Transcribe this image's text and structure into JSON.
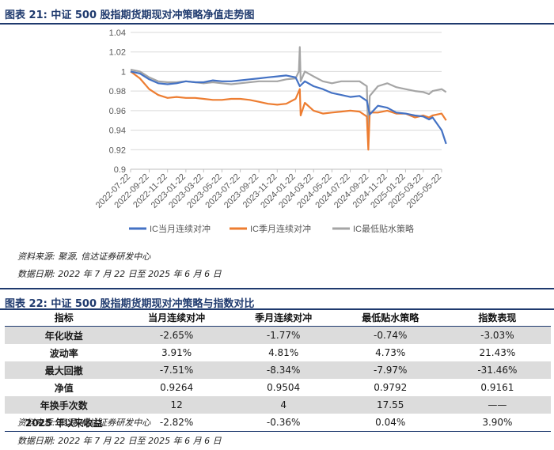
{
  "figure21": {
    "title": "图表 21:  中证 500 股指期货期现对冲策略净值走势图",
    "source": "资料来源:  聚源,  信达证券研发中心",
    "date_range": "数据日期:  2022 年 7 月 22 日至 2025 年 6 月 6 日"
  },
  "chart_data": {
    "type": "line",
    "title": "",
    "xlabel": "",
    "ylabel": "",
    "ylim": [
      0.9,
      1.04
    ],
    "yticks": [
      "0.9",
      "0.92",
      "0.94",
      "0.96",
      "0.98",
      "1",
      "1.02",
      "1.04"
    ],
    "x_ticks": [
      "2022-07-22",
      "2022-09-22",
      "2022-11-22",
      "2023-01-22",
      "2023-03-22",
      "2023-05-22",
      "2023-07-22",
      "2023-09-22",
      "2023-11-22",
      "2024-01-22",
      "2024-03-22",
      "2024-05-22",
      "2024-07-22",
      "2024-09-22",
      "2024-11-22",
      "2025-01-22",
      "2025-03-22",
      "2025-05-22"
    ],
    "grid": "horizontal",
    "legend_position": "bottom",
    "series": [
      {
        "name": "IC当月连续对冲",
        "color": "#4472c4",
        "x": [
          "2022-07-22",
          "2022-08-22",
          "2022-09-22",
          "2022-10-22",
          "2022-11-22",
          "2022-12-22",
          "2023-01-22",
          "2023-02-22",
          "2023-03-22",
          "2023-04-22",
          "2023-05-22",
          "2023-06-22",
          "2023-07-22",
          "2023-08-22",
          "2023-09-22",
          "2023-10-22",
          "2023-11-22",
          "2023-12-22",
          "2024-01-22",
          "2024-02-05",
          "2024-02-22",
          "2024-03-22",
          "2024-04-22",
          "2024-05-22",
          "2024-06-22",
          "2024-07-22",
          "2024-08-22",
          "2024-09-15",
          "2024-09-25",
          "2024-10-22",
          "2024-11-22",
          "2024-12-22",
          "2025-01-22",
          "2025-02-22",
          "2025-03-22",
          "2025-04-10",
          "2025-04-22",
          "2025-05-22",
          "2025-06-06"
        ],
        "values": [
          1.0,
          0.998,
          0.992,
          0.988,
          0.987,
          0.988,
          0.99,
          0.989,
          0.989,
          0.991,
          0.99,
          0.99,
          0.991,
          0.992,
          0.993,
          0.994,
          0.995,
          0.996,
          0.994,
          0.985,
          0.99,
          0.985,
          0.982,
          0.978,
          0.976,
          0.974,
          0.975,
          0.97,
          0.956,
          0.965,
          0.963,
          0.958,
          0.957,
          0.955,
          0.954,
          0.951,
          0.953,
          0.94,
          0.926
        ]
      },
      {
        "name": "IC季月连续对冲",
        "color": "#ed7d31",
        "x": [
          "2022-07-22",
          "2022-08-22",
          "2022-09-22",
          "2022-10-22",
          "2022-11-22",
          "2022-12-22",
          "2023-01-22",
          "2023-02-22",
          "2023-03-22",
          "2023-04-22",
          "2023-05-22",
          "2023-06-22",
          "2023-07-22",
          "2023-08-22",
          "2023-09-22",
          "2023-10-22",
          "2023-11-22",
          "2023-12-22",
          "2024-01-22",
          "2024-02-05",
          "2024-02-08",
          "2024-02-22",
          "2024-03-22",
          "2024-04-22",
          "2024-05-22",
          "2024-06-22",
          "2024-07-22",
          "2024-08-22",
          "2024-09-15",
          "2024-09-20",
          "2024-09-25",
          "2024-10-22",
          "2024-11-22",
          "2024-12-22",
          "2025-01-22",
          "2025-02-22",
          "2025-03-22",
          "2025-04-10",
          "2025-04-22",
          "2025-05-22",
          "2025-06-06"
        ],
        "values": [
          1.0,
          0.993,
          0.982,
          0.976,
          0.973,
          0.974,
          0.973,
          0.973,
          0.972,
          0.971,
          0.971,
          0.972,
          0.972,
          0.971,
          0.969,
          0.967,
          0.966,
          0.967,
          0.972,
          0.982,
          0.955,
          0.968,
          0.96,
          0.957,
          0.958,
          0.959,
          0.96,
          0.959,
          0.954,
          0.92,
          0.958,
          0.958,
          0.96,
          0.957,
          0.957,
          0.953,
          0.955,
          0.953,
          0.955,
          0.957,
          0.95
        ]
      },
      {
        "name": "IC最低贴水策略",
        "color": "#a5a5a5",
        "x": [
          "2022-07-22",
          "2022-08-22",
          "2022-09-22",
          "2022-10-22",
          "2022-11-22",
          "2022-12-22",
          "2023-01-22",
          "2023-02-22",
          "2023-03-22",
          "2023-04-22",
          "2023-05-22",
          "2023-06-22",
          "2023-07-22",
          "2023-08-22",
          "2023-09-22",
          "2023-10-22",
          "2023-11-22",
          "2023-12-22",
          "2024-01-22",
          "2024-02-02",
          "2024-02-05",
          "2024-02-08",
          "2024-02-22",
          "2024-03-22",
          "2024-04-22",
          "2024-05-22",
          "2024-06-22",
          "2024-07-22",
          "2024-08-22",
          "2024-09-15",
          "2024-09-20",
          "2024-09-25",
          "2024-10-22",
          "2024-11-22",
          "2024-12-22",
          "2025-01-22",
          "2025-02-22",
          "2025-03-22",
          "2025-04-10",
          "2025-04-22",
          "2025-05-22",
          "2025-06-06"
        ],
        "values": [
          1.002,
          1.0,
          0.994,
          0.99,
          0.989,
          0.989,
          0.99,
          0.989,
          0.988,
          0.989,
          0.988,
          0.987,
          0.988,
          0.989,
          0.99,
          0.99,
          0.99,
          0.992,
          0.993,
          1.0,
          1.025,
          0.99,
          1.0,
          0.995,
          0.99,
          0.988,
          0.99,
          0.99,
          0.99,
          0.985,
          0.93,
          0.975,
          0.985,
          0.988,
          0.984,
          0.982,
          0.98,
          0.979,
          0.977,
          0.98,
          0.982,
          0.979
        ]
      }
    ]
  },
  "table22": {
    "title": "图表 22:  中证 500 股指期货期现对冲策略与指数对比",
    "headers": [
      "指标",
      "当月连续对冲",
      "季月连续对冲",
      "最低贴水策略",
      "指数表现"
    ],
    "rows": [
      [
        "年化收益",
        "-2.65%",
        "-1.77%",
        "-0.74%",
        "-3.03%"
      ],
      [
        "波动率",
        "3.91%",
        "4.81%",
        "4.73%",
        "21.43%"
      ],
      [
        "最大回撤",
        "-7.51%",
        "-8.34%",
        "-7.97%",
        "-31.46%"
      ],
      [
        "净值",
        "0.9264",
        "0.9504",
        "0.9792",
        "0.9161"
      ],
      [
        "年换手次数",
        "12",
        "4",
        "17.55",
        "——"
      ],
      [
        "2025 年以来收益",
        "-2.82%",
        "-0.36%",
        "0.04%",
        "3.90%"
      ]
    ],
    "source": "资料来源:  聚源,  信达证券研发中心",
    "date_range": "数据日期:  2022 年 7 月 22 日至 2025 年 6 月 6 日"
  }
}
